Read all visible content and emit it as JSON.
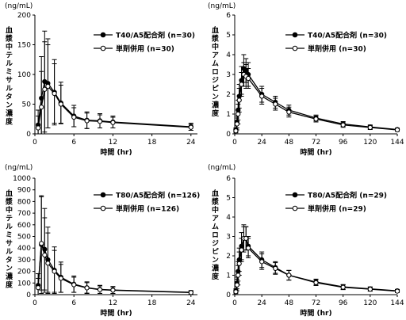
{
  "chart_data": [
    {
      "type": "line",
      "unit": "(ng/mL)",
      "ylabel": "血漿中テルミサルタン濃度",
      "xlabel": "時間 (hr)",
      "xlim": [
        0,
        25
      ],
      "ylim": [
        0,
        200
      ],
      "xticks": [
        0,
        6,
        12,
        18,
        24
      ],
      "yticks": [
        0,
        50,
        100,
        150,
        200
      ],
      "legend_loc": "top-right",
      "series": [
        {
          "name": "T40/A5配合剤 (n=30)",
          "marker": "filled",
          "x": [
            0.5,
            1,
            1.5,
            2,
            3,
            4,
            6,
            8,
            10,
            12,
            24
          ],
          "y": [
            15,
            60,
            88,
            85,
            70,
            52,
            30,
            23,
            22,
            20,
            12
          ],
          "err": [
            25,
            70,
            85,
            75,
            55,
            35,
            18,
            14,
            12,
            10,
            6
          ]
        },
        {
          "name": "単剤併用 (n=30)",
          "marker": "open",
          "x": [
            0.5,
            1,
            1.5,
            2,
            3,
            4,
            6,
            8,
            10,
            12,
            24
          ],
          "y": [
            10,
            45,
            75,
            80,
            68,
            50,
            28,
            22,
            21,
            19,
            11
          ],
          "err": [
            20,
            60,
            80,
            70,
            50,
            32,
            16,
            13,
            11,
            9,
            5
          ]
        }
      ]
    },
    {
      "type": "line",
      "unit": "(ng/mL)",
      "ylabel": "血漿中アムロジピン濃度",
      "xlabel": "時間 (hr)",
      "xlim": [
        0,
        144
      ],
      "ylim": [
        0,
        6
      ],
      "xticks": [
        0,
        24,
        48,
        72,
        96,
        120,
        144
      ],
      "yticks": [
        0,
        1,
        2,
        3,
        4,
        5,
        6
      ],
      "legend_loc": "top-right",
      "series": [
        {
          "name": "T40/A5配合剤 (n=30)",
          "marker": "filled",
          "x": [
            1,
            2,
            3,
            4,
            6,
            8,
            10,
            12,
            24,
            36,
            48,
            72,
            96,
            120,
            144
          ],
          "y": [
            0.2,
            0.6,
            1.2,
            1.9,
            2.7,
            3.3,
            3.2,
            3.0,
            2.0,
            1.6,
            1.2,
            0.8,
            0.5,
            0.35,
            0.22
          ],
          "err": [
            0.1,
            0.3,
            0.5,
            0.6,
            0.7,
            0.7,
            0.6,
            0.6,
            0.4,
            0.3,
            0.25,
            0.15,
            0.12,
            0.1,
            0.07
          ]
        },
        {
          "name": "単剤併用 (n=30)",
          "marker": "open",
          "x": [
            1,
            2,
            3,
            4,
            6,
            8,
            10,
            12,
            24,
            36,
            48,
            72,
            96,
            120,
            144
          ],
          "y": [
            0.15,
            0.5,
            1.0,
            1.7,
            2.5,
            3.0,
            2.9,
            2.8,
            1.9,
            1.5,
            1.1,
            0.75,
            0.45,
            0.32,
            0.2
          ],
          "err": [
            0.1,
            0.3,
            0.5,
            0.6,
            0.6,
            0.6,
            0.6,
            0.5,
            0.4,
            0.3,
            0.25,
            0.15,
            0.12,
            0.1,
            0.07
          ]
        }
      ]
    },
    {
      "type": "line",
      "unit": "(ng/mL)",
      "ylabel": "血漿中テルミサルタン濃度",
      "xlabel": "時間 (hr)",
      "xlim": [
        0,
        25
      ],
      "ylim": [
        0,
        1000
      ],
      "xticks": [
        0,
        6,
        12,
        18,
        24
      ],
      "yticks": [
        0,
        100,
        200,
        300,
        400,
        500,
        600,
        700,
        800,
        900,
        1000
      ],
      "legend_loc": "top-right",
      "series": [
        {
          "name": "T80/A5配合剤 (n=126)",
          "marker": "filled",
          "x": [
            0.5,
            1,
            1.5,
            2,
            3,
            4,
            6,
            8,
            10,
            12,
            24
          ],
          "y": [
            80,
            430,
            390,
            300,
            210,
            150,
            90,
            60,
            45,
            40,
            20
          ],
          "err": [
            100,
            420,
            350,
            280,
            200,
            130,
            70,
            50,
            35,
            30,
            15
          ]
        },
        {
          "name": "単剤併用 (n=126)",
          "marker": "open",
          "x": [
            0.5,
            1,
            1.5,
            2,
            3,
            4,
            6,
            8,
            10,
            12,
            24
          ],
          "y": [
            60,
            440,
            340,
            270,
            200,
            140,
            85,
            58,
            43,
            38,
            18
          ],
          "err": [
            80,
            400,
            320,
            260,
            180,
            120,
            65,
            45,
            32,
            28,
            14
          ]
        }
      ]
    },
    {
      "type": "line",
      "unit": "(ng/mL)",
      "ylabel": "血漿中アムロジピン濃度",
      "xlabel": "時間 (hr)",
      "xlim": [
        0,
        144
      ],
      "ylim": [
        0,
        6
      ],
      "xticks": [
        0,
        24,
        48,
        72,
        96,
        120,
        144
      ],
      "yticks": [
        0,
        1,
        2,
        3,
        4,
        5,
        6
      ],
      "legend_loc": "top-right",
      "series": [
        {
          "name": "T80/A5配合剤 (n=29)",
          "marker": "filled",
          "x": [
            1,
            2,
            3,
            4,
            6,
            8,
            10,
            12,
            24,
            36,
            48,
            72,
            96,
            120,
            144
          ],
          "y": [
            0.2,
            0.6,
            1.2,
            1.8,
            2.5,
            2.9,
            2.9,
            2.5,
            1.8,
            1.4,
            1.0,
            0.65,
            0.4,
            0.3,
            0.2
          ],
          "err": [
            0.1,
            0.3,
            0.5,
            0.6,
            0.7,
            0.7,
            0.6,
            0.5,
            0.4,
            0.3,
            0.25,
            0.15,
            0.12,
            0.1,
            0.07
          ]
        },
        {
          "name": "単剤併用 (n=29)",
          "marker": "open",
          "x": [
            1,
            2,
            3,
            4,
            6,
            8,
            10,
            12,
            24,
            36,
            48,
            72,
            96,
            120,
            144
          ],
          "y": [
            0.15,
            0.5,
            1.0,
            1.6,
            2.3,
            2.9,
            2.9,
            2.4,
            1.7,
            1.35,
            1.0,
            0.62,
            0.38,
            0.28,
            0.18
          ],
          "err": [
            0.1,
            0.3,
            0.5,
            0.6,
            0.6,
            0.6,
            0.6,
            0.5,
            0.4,
            0.3,
            0.25,
            0.15,
            0.12,
            0.1,
            0.07
          ]
        }
      ]
    }
  ]
}
